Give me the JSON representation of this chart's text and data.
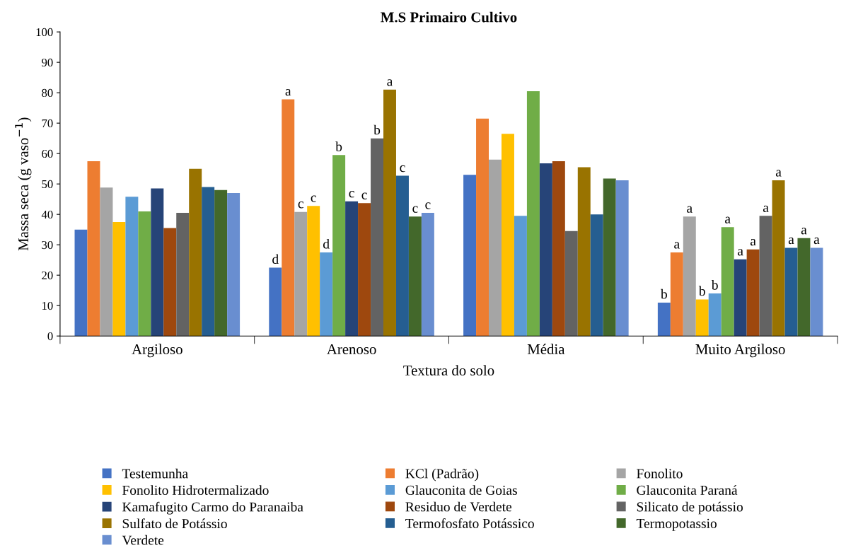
{
  "chart_data": {
    "type": "bar",
    "title": "M.S Primairo Cultivo",
    "xlabel": "Textura do solo",
    "ylabel": "Massa seca (g vaso$^{−1}$)",
    "categories": [
      "Argiloso",
      "Arenoso",
      "Média",
      "Muito Argiloso"
    ],
    "ylim": [
      0,
      100
    ],
    "yticks": [
      0,
      10,
      20,
      30,
      40,
      50,
      60,
      70,
      80,
      90,
      100
    ],
    "grid": false,
    "legend": "bottom",
    "series": [
      {
        "name": "Testemunha",
        "color": "#4472c4",
        "values": [
          35,
          22.5,
          53,
          11
        ],
        "value_labels": [
          null,
          "d",
          null,
          "b"
        ]
      },
      {
        "name": "KCl (Padrão)",
        "color": "#ed7d31",
        "values": [
          57.5,
          77.8,
          71.5,
          27.5
        ],
        "value_labels": [
          null,
          "a",
          null,
          "a"
        ]
      },
      {
        "name": "Fonolito",
        "color": "#a5a5a5",
        "values": [
          48.8,
          40.8,
          58,
          39.3
        ],
        "value_labels": [
          null,
          "c",
          null,
          "a"
        ]
      },
      {
        "name": "Fonolito Hidrotermalizado",
        "color": "#ffc000",
        "values": [
          37.5,
          42.8,
          66.5,
          12
        ],
        "value_labels": [
          null,
          "c",
          null,
          "b"
        ]
      },
      {
        "name": "Glauconita de Goias",
        "color": "#5b9bd5",
        "values": [
          45.8,
          27.5,
          39.5,
          14
        ],
        "value_labels": [
          null,
          "d",
          null,
          "b"
        ]
      },
      {
        "name": "Glauconita Paraná",
        "color": "#70ad47",
        "values": [
          41,
          59.5,
          80.5,
          35.8
        ],
        "value_labels": [
          null,
          "b",
          null,
          "a"
        ]
      },
      {
        "name": "Kamafugito Carmo do Paranaiba",
        "color": "#264478",
        "values": [
          48.5,
          44.3,
          56.8,
          25.2
        ],
        "value_labels": [
          null,
          "c",
          null,
          "a"
        ]
      },
      {
        "name": "Residuo de Verdete",
        "color": "#9e480e",
        "values": [
          35.5,
          43.7,
          57.5,
          28.5
        ],
        "value_labels": [
          null,
          "c",
          null,
          "a"
        ]
      },
      {
        "name": "Silicato de potássio",
        "color": "#636363",
        "values": [
          40.5,
          65,
          34.5,
          39.5
        ],
        "value_labels": [
          null,
          "b",
          null,
          "a"
        ]
      },
      {
        "name": "Sulfato de Potássio",
        "color": "#997300",
        "values": [
          55,
          81,
          55.5,
          51.2
        ],
        "value_labels": [
          null,
          "a",
          null,
          "a"
        ]
      },
      {
        "name": "Termofosfato Potássico",
        "color": "#255e91",
        "values": [
          49,
          52.7,
          40,
          29
        ],
        "value_labels": [
          null,
          "c",
          null,
          "a"
        ]
      },
      {
        "name": "Termopotassio",
        "color": "#43682b",
        "values": [
          48,
          39.3,
          51.8,
          32.2
        ],
        "value_labels": [
          null,
          "c",
          null,
          "a"
        ]
      },
      {
        "name": "Verdete",
        "color": "#698ed0",
        "values": [
          47,
          40.5,
          51.2,
          29
        ],
        "value_labels": [
          null,
          "c",
          null,
          "a"
        ]
      }
    ]
  }
}
